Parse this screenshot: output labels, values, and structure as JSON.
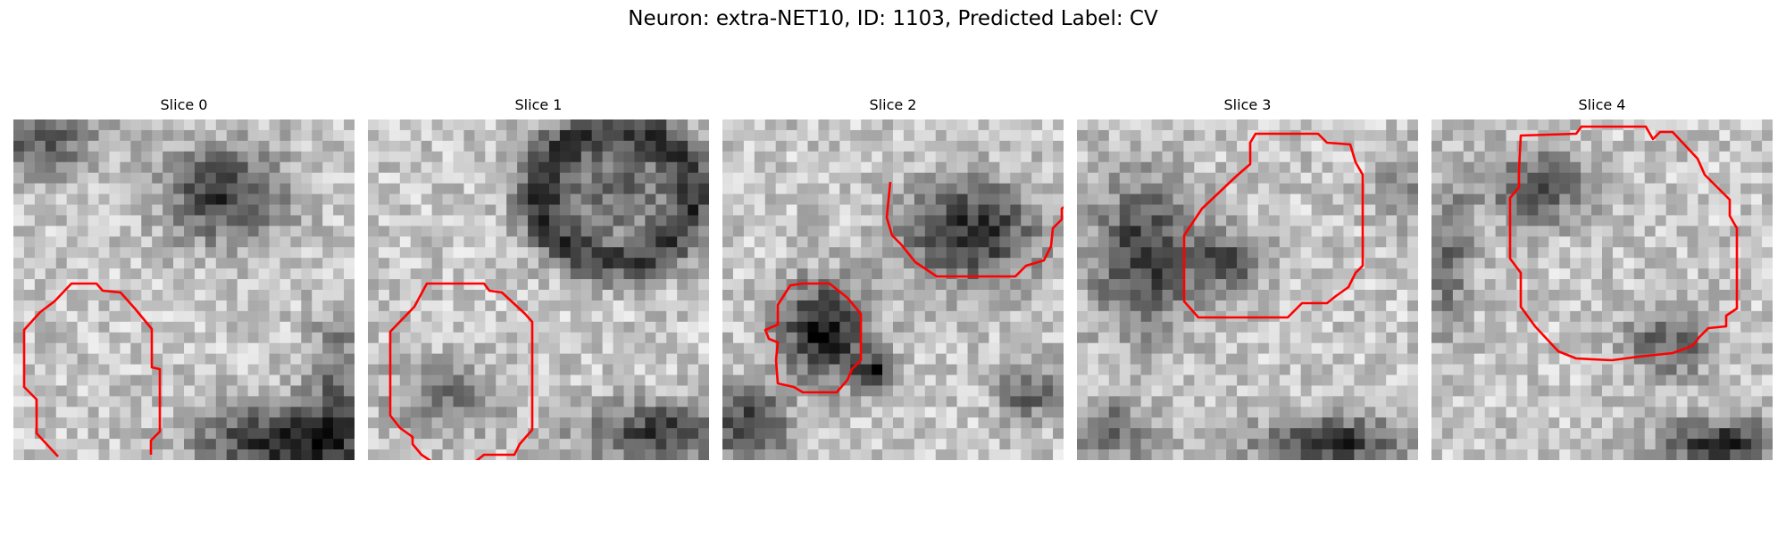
{
  "figure": {
    "title": "Neuron: extra-NET10, ID: 1103, Predicted Label: CV"
  },
  "panels": [
    {
      "label": "Slice 0"
    },
    {
      "label": "Slice 1"
    },
    {
      "label": "Slice 2"
    },
    {
      "label": "Slice 3"
    },
    {
      "label": "Slice 4"
    }
  ],
  "colors": {
    "contour": "#ff0000",
    "image_colormap": "grayscale"
  }
}
